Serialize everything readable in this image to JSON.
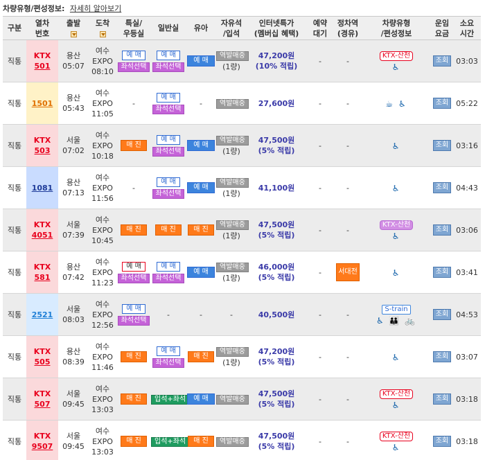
{
  "topbar": {
    "title": "차량유형/편성정보:",
    "link": "자세히 알아보기"
  },
  "headers": {
    "gubun": "구분",
    "train_no": [
      "열차",
      "번호"
    ],
    "dep": "출발",
    "arr": "도착",
    "special": [
      "특실/",
      "우등실"
    ],
    "normal": "일반실",
    "child": "유아",
    "free": [
      "자유석",
      "/입석"
    ],
    "internet": [
      "인터넷특가",
      "(멤버십 혜택)"
    ],
    "waitlist": [
      "예약",
      "대기"
    ],
    "stop": [
      "정차역",
      "(경유)"
    ],
    "cartype": [
      "차량유형",
      "/편성정보"
    ],
    "fare": [
      "운임",
      "요금"
    ],
    "duration": [
      "소요",
      "시간"
    ]
  },
  "rows": [
    {
      "gubun": "직통",
      "type": "KTX",
      "no": "501",
      "style": "ktx",
      "dep_station": "용산",
      "dep_time": "05:07",
      "arr_station": "여수",
      "arr_sub": "EXPO",
      "arr_time": "08:10",
      "special": [
        "예 매",
        "좌석선택"
      ],
      "normal": [
        "예 매",
        "좌석선택"
      ],
      "child": "예 매",
      "free": [
        "역발매중",
        "(1량)"
      ],
      "price": "47,200원",
      "benefit": "(10% 적립)",
      "waitlist": "-",
      "stop": "-",
      "car_tag": "KTX-산천",
      "car_tag_style": "red",
      "car_icons": "♿",
      "fare": "조회",
      "duration": "03:03"
    },
    {
      "gubun": "직통",
      "type": "",
      "no": "1501",
      "style": "mug",
      "dep_station": "용산",
      "dep_time": "05:43",
      "arr_station": "여수",
      "arr_sub": "EXPO",
      "arr_time": "11:05",
      "special": [],
      "normal": [
        "예 매",
        "좌석선택"
      ],
      "child": "-",
      "free": [
        "역발매중"
      ],
      "price": "27,600원",
      "benefit": "",
      "waitlist": "-",
      "stop": "-",
      "car_tag": "",
      "car_tag_style": "",
      "car_icons": "☕ ♿",
      "fare": "조회",
      "duration": "05:22"
    },
    {
      "gubun": "직통",
      "type": "KTX",
      "no": "503",
      "style": "ktx",
      "dep_station": "서울",
      "dep_time": "07:02",
      "arr_station": "여수",
      "arr_sub": "EXPO",
      "arr_time": "10:18",
      "special": [
        "매 진"
      ],
      "normal": [
        "예 매",
        "좌석선택"
      ],
      "child": "예 매",
      "free": [
        "역발매중",
        "(1량)"
      ],
      "price": "47,500원",
      "benefit": "(5% 적립)",
      "waitlist": "-",
      "stop": "-",
      "car_tag": "",
      "car_tag_style": "",
      "car_icons": "♿",
      "fare": "조회",
      "duration": "03:16"
    },
    {
      "gubun": "직통",
      "type": "",
      "no": "1081",
      "style": "sae",
      "dep_station": "용산",
      "dep_time": "07:13",
      "arr_station": "여수",
      "arr_sub": "EXPO",
      "arr_time": "11:56",
      "special": [],
      "normal": [
        "예 매",
        "좌석선택"
      ],
      "child": "예 매",
      "free": [
        "역발매중",
        "(1량)"
      ],
      "price": "41,100원",
      "benefit": "",
      "waitlist": "-",
      "stop": "-",
      "car_tag": "",
      "car_tag_style": "",
      "car_icons": "♿",
      "fare": "조회",
      "duration": "04:43"
    },
    {
      "gubun": "직통",
      "type": "KTX",
      "no": "4051",
      "style": "ktx",
      "dep_station": "서울",
      "dep_time": "07:39",
      "arr_station": "여수",
      "arr_sub": "EXPO",
      "arr_time": "10:45",
      "special": [
        "매 진"
      ],
      "normal": [
        "매 진"
      ],
      "child": "매 진",
      "free": [
        "역발매중",
        "(1량)"
      ],
      "price": "47,500원",
      "benefit": "(5% 적립)",
      "waitlist": "-",
      "stop": "-",
      "car_tag": "KTX-산천",
      "car_tag_style": "purple",
      "car_icons": "♿",
      "fare": "조회",
      "duration": "03:06"
    },
    {
      "gubun": "직통",
      "type": "KTX",
      "no": "581",
      "style": "ktx",
      "dep_station": "용산",
      "dep_time": "07:42",
      "arr_station": "여수",
      "arr_sub": "EXPO",
      "arr_time": "11:23",
      "special": [
        "예 매",
        "좌석선택"
      ],
      "normal": [
        "예 매",
        "좌석선택"
      ],
      "child": "예 매",
      "free": [
        "역발매중",
        "(1량)"
      ],
      "price": "46,000원",
      "benefit": "(5% 적립)",
      "waitlist": "-",
      "stop": "서대전",
      "car_tag": "",
      "car_tag_style": "",
      "car_icons": "♿",
      "fare": "조회",
      "duration": "03:41"
    },
    {
      "gubun": "직통",
      "type": "",
      "no": "2521",
      "style": "itx",
      "dep_station": "서울",
      "dep_time": "08:03",
      "arr_station": "여수",
      "arr_sub": "EXPO",
      "arr_time": "12:56",
      "special": [
        "예 매",
        "좌석선택"
      ],
      "normal": [],
      "child": "-",
      "free": [
        "-"
      ],
      "price": "40,500원",
      "benefit": "",
      "waitlist": "-",
      "stop": "-",
      "car_tag": "S-train",
      "car_tag_style": "strain",
      "car_icons": "♿ 👪 🚲",
      "fare": "조회",
      "duration": "04:53"
    },
    {
      "gubun": "직통",
      "type": "KTX",
      "no": "505",
      "style": "ktx",
      "dep_station": "용산",
      "dep_time": "08:39",
      "arr_station": "여수",
      "arr_sub": "EXPO",
      "arr_time": "11:46",
      "special": [
        "매 진"
      ],
      "normal": [
        "예 매",
        "좌석선택"
      ],
      "child": "매 진",
      "free": [
        "역발매중",
        "(1량)"
      ],
      "price": "47,200원",
      "benefit": "(5% 적립)",
      "waitlist": "-",
      "stop": "-",
      "car_tag": "",
      "car_tag_style": "",
      "car_icons": "♿",
      "fare": "조회",
      "duration": "03:07"
    },
    {
      "gubun": "직통",
      "type": "KTX",
      "no": "507",
      "style": "ktx",
      "dep_station": "서울",
      "dep_time": "09:45",
      "arr_station": "여수",
      "arr_sub": "EXPO",
      "arr_time": "13:03",
      "special": [
        "매 진"
      ],
      "normal": [
        "입석+좌석"
      ],
      "child": "예 매",
      "free": [
        "역발매중"
      ],
      "price": "47,500원",
      "benefit": "(5% 적립)",
      "waitlist": "-",
      "stop": "-",
      "car_tag": "KTX-산천",
      "car_tag_style": "red",
      "car_icons": "♿",
      "fare": "조회",
      "duration": "03:18"
    },
    {
      "gubun": "직통",
      "type": "KTX",
      "no": "9507",
      "style": "ktx",
      "dep_station": "서울",
      "dep_time": "09:45",
      "arr_station": "여수",
      "arr_sub": "EXPO",
      "arr_time": "13:03",
      "special": [
        "매 진"
      ],
      "normal": [
        "입석+좌석"
      ],
      "child": "매 진",
      "free": [
        "역발매중"
      ],
      "price": "47,500원",
      "benefit": "(5% 적립)",
      "waitlist": "-",
      "stop": "-",
      "car_tag": "KTX-산천",
      "car_tag_style": "red",
      "car_icons": "♿",
      "fare": "조회",
      "duration": "03:18"
    }
  ]
}
